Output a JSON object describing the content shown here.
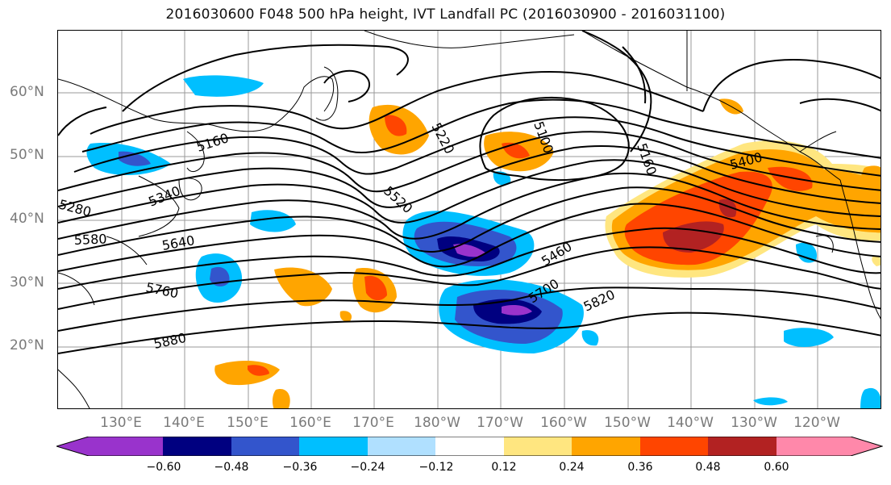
{
  "title": "2016030600 F048 500 hPa height, IVT Landfall PC (2016030900 - 2016031100)",
  "lat_labels": [
    "60°N",
    "50°N",
    "40°N",
    "30°N",
    "20°N"
  ],
  "lon_labels": [
    "130°E",
    "140°E",
    "150°E",
    "160°E",
    "170°E",
    "180°W",
    "170°W",
    "160°W",
    "150°W",
    "140°W",
    "130°W",
    "120°W"
  ],
  "contour_labels": [
    "5160",
    "5220",
    "5100",
    "5160",
    "5280",
    "5340",
    "5400",
    "5520",
    "5460",
    "5580",
    "5640",
    "5700",
    "5760",
    "5820",
    "5880"
  ],
  "colorbar": {
    "colors": [
      "#9933cc",
      "#000080",
      "#3355cc",
      "#00bfff",
      "#b0e0ff",
      "#ffffff",
      "#ffe680",
      "#ffa500",
      "#ff4500",
      "#b22222",
      "#ff88aa"
    ],
    "tick_labels": [
      "−0.60",
      "−0.48",
      "−0.36",
      "−0.24",
      "−0.12",
      "0.12",
      "0.24",
      "0.36",
      "0.48",
      "0.60"
    ]
  }
}
